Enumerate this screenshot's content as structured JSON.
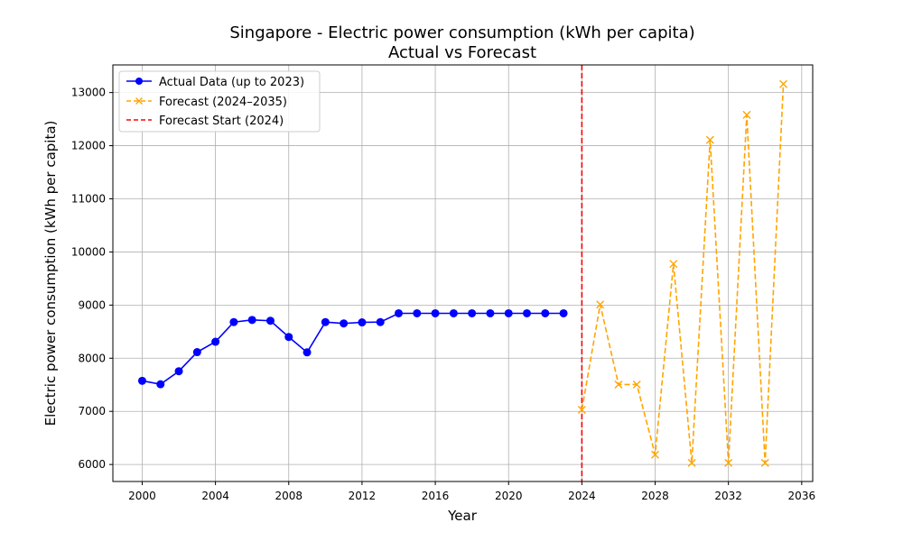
{
  "chart_data": {
    "type": "line",
    "title": "Singapore - Electric power consumption (kWh per capita)",
    "subtitle": "Actual vs Forecast",
    "xlabel": "Year",
    "ylabel": "Electric power consumption (kWh per capita)",
    "xlim": [
      1998.4,
      2036.6
    ],
    "ylim": [
      5680,
      13520
    ],
    "xticks": [
      2000,
      2004,
      2008,
      2012,
      2016,
      2020,
      2024,
      2028,
      2032,
      2036
    ],
    "yticks": [
      6000,
      7000,
      8000,
      9000,
      10000,
      11000,
      12000,
      13000
    ],
    "grid": true,
    "legend_position": "top-left",
    "series": [
      {
        "name": "Actual Data (up to 2023)",
        "color": "#0000ff",
        "style": "solid",
        "marker": "circle",
        "x": [
          2000,
          2001,
          2002,
          2003,
          2004,
          2005,
          2006,
          2007,
          2008,
          2009,
          2010,
          2011,
          2012,
          2013,
          2014,
          2015,
          2016,
          2017,
          2018,
          2019,
          2020,
          2021,
          2022,
          2023
        ],
        "y": [
          7575,
          7510,
          7755,
          8115,
          8310,
          8680,
          8720,
          8705,
          8400,
          8110,
          8680,
          8655,
          8675,
          8680,
          8845,
          8845,
          8845,
          8845,
          8845,
          8845,
          8845,
          8845,
          8845,
          8845
        ]
      },
      {
        "name": "Forecast (2024–2035)",
        "color": "#ffa500",
        "style": "dashed",
        "marker": "x",
        "x": [
          2024,
          2025,
          2026,
          2027,
          2028,
          2029,
          2030,
          2031,
          2032,
          2033,
          2034,
          2035
        ],
        "y": [
          7030,
          9010,
          7505,
          7505,
          6185,
          9775,
          6030,
          12110,
          6030,
          12580,
          6030,
          13160
        ]
      }
    ],
    "vline": {
      "name": "Forecast Start (2024)",
      "x": 2024,
      "color": "#ff0000",
      "style": "dashed"
    }
  }
}
